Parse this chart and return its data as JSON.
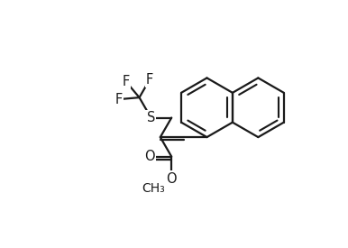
{
  "bg": "#ffffff",
  "lc": "#1a1a1a",
  "lw": 1.6,
  "fs": 10.5,
  "r": 0.108,
  "xlim": [
    0.0,
    1.0
  ],
  "ylim": [
    0.08,
    0.98
  ]
}
